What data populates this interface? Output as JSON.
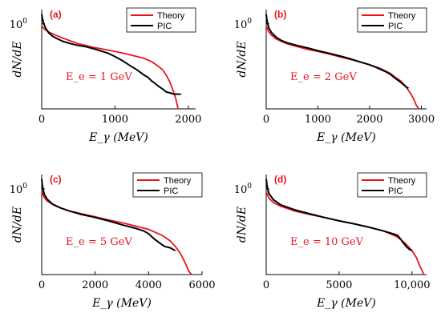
{
  "chart_data": [
    {
      "type": "line",
      "panel_label": "(a)",
      "annotation": "E_e = 1 GeV",
      "xlabel": "E_γ (MeV)",
      "ylabel": "dN/dE",
      "xlim": [
        0,
        2100
      ],
      "xticks": [
        0,
        1000,
        2000
      ],
      "xtick_labels": [
        "0",
        "1000",
        "2000"
      ],
      "ytick_label": "10^0",
      "yscale": "log",
      "legend": [
        "Theory",
        "PIC"
      ],
      "legend_position": "top-right",
      "series": [
        {
          "name": "Theory",
          "color": "#e8141b",
          "x": [
            0,
            25,
            50,
            100,
            200,
            300,
            400,
            500,
            600,
            700,
            800,
            900,
            1000,
            1100,
            1200,
            1300,
            1400,
            1500,
            1550,
            1600,
            1650,
            1700,
            1750,
            1800,
            1830,
            1850,
            1860
          ],
          "y": [
            0.92,
            0.83,
            0.78,
            0.71,
            0.62,
            0.55,
            0.49,
            0.44,
            0.41,
            0.38,
            0.36,
            0.34,
            0.32,
            0.3,
            0.28,
            0.26,
            0.24,
            0.21,
            0.19,
            0.17,
            0.15,
            0.12,
            0.09,
            0.06,
            0.045,
            0.035,
            0.03
          ]
        },
        {
          "name": "PIC",
          "color": "#000000",
          "x": [
            0,
            10,
            25,
            50,
            100,
            150,
            200,
            300,
            400,
            500,
            600,
            700,
            800,
            900,
            1000,
            1100,
            1200,
            1300,
            1400,
            1450,
            1500,
            1550,
            1600,
            1650,
            1700,
            1750,
            1800,
            1850,
            1900
          ],
          "y": [
            1.5,
            1.25,
            1.05,
            0.85,
            0.68,
            0.6,
            0.55,
            0.48,
            0.44,
            0.41,
            0.39,
            0.36,
            0.33,
            0.3,
            0.26,
            0.22,
            0.18,
            0.15,
            0.12,
            0.11,
            0.095,
            0.085,
            0.075,
            0.068,
            0.06,
            0.058,
            0.055,
            0.055,
            0.055
          ]
        }
      ]
    },
    {
      "type": "line",
      "panel_label": "(b)",
      "annotation": "E_e = 2 GeV",
      "xlabel": "E_γ (MeV)",
      "ylabel": "dN/dE",
      "xlim": [
        0,
        3100
      ],
      "xticks": [
        0,
        1000,
        2000,
        3000
      ],
      "xtick_labels": [
        "0",
        "1000",
        "2000",
        "3000"
      ],
      "ytick_label": "10^0",
      "yscale": "log",
      "legend": [
        "Theory",
        "PIC"
      ],
      "legend_position": "top-right",
      "series": [
        {
          "name": "Theory",
          "color": "#e8141b",
          "x": [
            0,
            25,
            50,
            100,
            200,
            400,
            600,
            800,
            1000,
            1200,
            1400,
            1600,
            1800,
            2000,
            2200,
            2400,
            2500,
            2600,
            2700,
            2800,
            2850,
            2900,
            2950
          ],
          "y": [
            0.92,
            0.8,
            0.72,
            0.63,
            0.53,
            0.44,
            0.39,
            0.35,
            0.32,
            0.29,
            0.26,
            0.235,
            0.21,
            0.185,
            0.16,
            0.13,
            0.11,
            0.095,
            0.075,
            0.055,
            0.045,
            0.035,
            0.03
          ]
        },
        {
          "name": "PIC",
          "color": "#000000",
          "x": [
            0,
            10,
            25,
            50,
            100,
            200,
            300,
            400,
            600,
            800,
            1000,
            1200,
            1400,
            1600,
            1800,
            2000,
            2100,
            2200,
            2300,
            2400,
            2500,
            2600,
            2700,
            2750
          ],
          "y": [
            1.5,
            1.25,
            1.05,
            0.85,
            0.7,
            0.57,
            0.5,
            0.46,
            0.41,
            0.37,
            0.33,
            0.3,
            0.27,
            0.24,
            0.21,
            0.185,
            0.17,
            0.155,
            0.14,
            0.125,
            0.105,
            0.09,
            0.075,
            0.07
          ]
        }
      ]
    },
    {
      "type": "line",
      "panel_label": "(c)",
      "annotation": "E_e = 5 GeV",
      "xlabel": "E_γ (MeV)",
      "ylabel": "dN/dE",
      "xlim": [
        0,
        6000
      ],
      "xticks": [
        0,
        2000,
        4000,
        6000
      ],
      "xtick_labels": [
        "0",
        "2000",
        "4000",
        "6000"
      ],
      "ytick_label": "10^0",
      "yscale": "log",
      "legend": [
        "Theory",
        "PIC"
      ],
      "legend_position": "top-right",
      "series": [
        {
          "name": "Theory",
          "color": "#e8141b",
          "x": [
            0,
            50,
            100,
            200,
            500,
            1000,
            1500,
            2000,
            2500,
            3000,
            3500,
            4000,
            4500,
            4800,
            5000,
            5200,
            5400,
            5500,
            5600
          ],
          "y": [
            0.92,
            0.78,
            0.7,
            0.61,
            0.5,
            0.41,
            0.36,
            0.32,
            0.28,
            0.25,
            0.22,
            0.19,
            0.15,
            0.12,
            0.095,
            0.07,
            0.045,
            0.035,
            0.03
          ]
        },
        {
          "name": "PIC",
          "color": "#000000",
          "x": [
            0,
            20,
            50,
            100,
            200,
            400,
            700,
            1000,
            1500,
            2000,
            2500,
            3000,
            3500,
            3800,
            4000,
            4200,
            4400,
            4600,
            4800,
            4900,
            5000
          ],
          "y": [
            1.5,
            1.2,
            0.98,
            0.8,
            0.66,
            0.54,
            0.46,
            0.41,
            0.35,
            0.31,
            0.27,
            0.23,
            0.2,
            0.18,
            0.16,
            0.13,
            0.11,
            0.095,
            0.09,
            0.085,
            0.08
          ]
        }
      ]
    },
    {
      "type": "line",
      "panel_label": "(d)",
      "annotation": "E_e = 10 GeV",
      "xlabel": "E_γ (MeV)",
      "ylabel": "dN/dE",
      "xlim": [
        0,
        11000
      ],
      "xticks": [
        0,
        5000,
        10000
      ],
      "xtick_labels": [
        "0",
        "5000",
        "10,000"
      ],
      "ytick_label": "10^0",
      "yscale": "log",
      "legend": [
        "Theory",
        "PIC"
      ],
      "legend_position": "top-right",
      "series": [
        {
          "name": "Theory",
          "color": "#e8141b",
          "x": [
            0,
            100,
            200,
            500,
            1000,
            2000,
            3000,
            4000,
            5000,
            6000,
            7000,
            8000,
            8500,
            9000,
            9500,
            10000,
            10300,
            10500,
            10700,
            10800
          ],
          "y": [
            0.92,
            0.76,
            0.68,
            0.57,
            0.49,
            0.4,
            0.35,
            0.31,
            0.27,
            0.24,
            0.21,
            0.18,
            0.16,
            0.14,
            0.11,
            0.08,
            0.06,
            0.045,
            0.035,
            0.03
          ]
        },
        {
          "name": "PIC",
          "color": "#000000",
          "x": [
            0,
            50,
            100,
            200,
            500,
            1000,
            2000,
            3000,
            4000,
            5000,
            6000,
            7000,
            8000,
            8500,
            9000,
            9200,
            9400,
            9600,
            9800,
            10000
          ],
          "y": [
            1.5,
            1.2,
            1.0,
            0.82,
            0.64,
            0.52,
            0.42,
            0.36,
            0.31,
            0.27,
            0.24,
            0.21,
            0.18,
            0.165,
            0.15,
            0.13,
            0.11,
            0.095,
            0.085,
            0.08
          ]
        }
      ]
    }
  ]
}
